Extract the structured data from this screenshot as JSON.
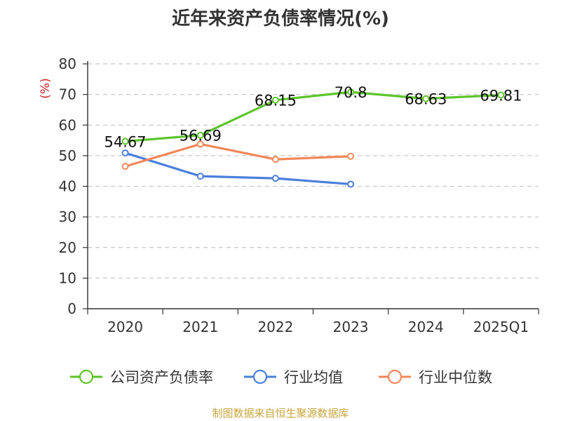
{
  "chart_data": {
    "type": "line",
    "title": "近年来资产负债率情况(%)",
    "ylabel": "(%)",
    "categories": [
      "2020",
      "2021",
      "2022",
      "2023",
      "2024",
      "2025Q1"
    ],
    "yticks": [
      "0",
      "10",
      "20",
      "30",
      "40",
      "50",
      "60",
      "70",
      "80"
    ],
    "ylim": [
      0,
      80
    ],
    "grid": true,
    "legend_position": "bottom",
    "series": [
      {
        "name": "公司资产负债率",
        "color": "#5cc52a",
        "values": [
          54.67,
          56.69,
          68.15,
          70.8,
          68.63,
          69.81
        ],
        "labels": [
          "54.67",
          "56.69",
          "68.15",
          "70.8",
          "68.63",
          "69.81"
        ]
      },
      {
        "name": "行业均值",
        "color": "#4a7fdc",
        "values": [
          50.9,
          43.3,
          42.6,
          40.7,
          null,
          null
        ]
      },
      {
        "name": "行业中位数",
        "color": "#f2875a",
        "values": [
          46.5,
          53.8,
          48.8,
          49.8,
          null,
          null
        ]
      }
    ]
  },
  "footer": {
    "source": "制图数据来自恒生聚源数据库"
  }
}
